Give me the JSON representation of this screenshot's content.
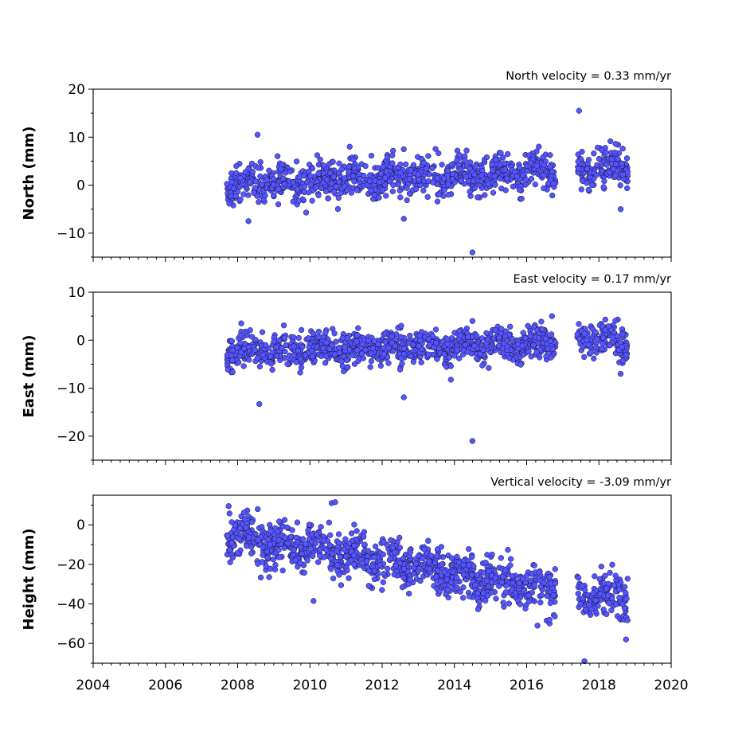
{
  "chart_data": [
    {
      "type": "scatter",
      "title": "North velocity = 0.33 mm/yr",
      "ylabel": "North (mm)",
      "xlim": [
        2004,
        2020
      ],
      "ylim": [
        -15,
        20
      ],
      "yticks": [
        -10,
        0,
        10,
        20
      ],
      "x_ticks": [
        2004,
        2006,
        2008,
        2010,
        2012,
        2014,
        2016,
        2018,
        2020
      ],
      "show_x_labels": false,
      "segments": [
        {
          "x_start": 2007.7,
          "x_end": 2016.8,
          "trend": [
            0.0,
            3.0
          ],
          "spread": 1.8
        },
        {
          "x_start": 2017.4,
          "x_end": 2018.8,
          "trend": [
            3.5,
            3.5
          ],
          "spread": 1.8
        }
      ],
      "outliers": [
        {
          "x": 2008.55,
          "y": 10.5
        },
        {
          "x": 2011.1,
          "y": 8.0
        },
        {
          "x": 2012.6,
          "y": 7.5
        },
        {
          "x": 2012.6,
          "y": -7.0
        },
        {
          "x": 2008.3,
          "y": -7.5
        },
        {
          "x": 2014.5,
          "y": -14.0
        },
        {
          "x": 2017.45,
          "y": 15.5
        },
        {
          "x": 2018.6,
          "y": -5.0
        }
      ]
    },
    {
      "type": "scatter",
      "title": "East velocity = 0.17 mm/yr",
      "ylabel": "East (mm)",
      "xlim": [
        2004,
        2020
      ],
      "ylim": [
        -25,
        10
      ],
      "yticks": [
        -20,
        -10,
        0,
        10
      ],
      "x_ticks": [
        2004,
        2006,
        2008,
        2010,
        2012,
        2014,
        2016,
        2018,
        2020
      ],
      "show_x_labels": false,
      "segments": [
        {
          "x_start": 2007.7,
          "x_end": 2016.8,
          "trend": [
            -2.5,
            -0.5
          ],
          "spread": 1.6
        },
        {
          "x_start": 2017.4,
          "x_end": 2018.8,
          "trend": [
            0.5,
            -0.5
          ],
          "spread": 1.8
        }
      ],
      "outliers": [
        {
          "x": 2008.6,
          "y": -13.3
        },
        {
          "x": 2012.6,
          "y": -11.9
        },
        {
          "x": 2014.5,
          "y": -21.0
        },
        {
          "x": 2014.5,
          "y": 4.0
        },
        {
          "x": 2016.7,
          "y": 5.0
        },
        {
          "x": 2008.1,
          "y": 3.5
        },
        {
          "x": 2018.6,
          "y": -7.0
        }
      ]
    },
    {
      "type": "scatter",
      "title": "Vertical velocity = -3.09 mm/yr",
      "ylabel": "Height (mm)",
      "xlim": [
        2004,
        2020
      ],
      "ylim": [
        -70,
        15
      ],
      "yticks": [
        -60,
        -40,
        -20,
        0
      ],
      "x_ticks": [
        2004,
        2006,
        2008,
        2010,
        2012,
        2014,
        2016,
        2018,
        2020
      ],
      "show_x_labels": true,
      "segments": [
        {
          "x_start": 2007.7,
          "x_end": 2016.8,
          "trend": [
            -5.0,
            -33.0
          ],
          "spread": 5.5
        },
        {
          "x_start": 2017.4,
          "x_end": 2018.8,
          "trend": [
            -35.0,
            -38.0
          ],
          "spread": 6.0
        }
      ],
      "outliers": [
        {
          "x": 2010.1,
          "y": -38.5
        },
        {
          "x": 2010.6,
          "y": 11.0
        },
        {
          "x": 2010.7,
          "y": 11.5
        },
        {
          "x": 2016.3,
          "y": -51.0
        },
        {
          "x": 2017.6,
          "y": -69.0
        },
        {
          "x": 2018.75,
          "y": -58.0
        },
        {
          "x": 2007.75,
          "y": 9.5
        }
      ]
    }
  ],
  "colors": {
    "point_fill": "#5555ff",
    "point_edge": "#111133"
  }
}
